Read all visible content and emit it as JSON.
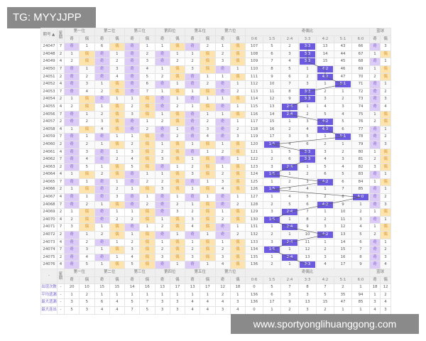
{
  "watermark_top": "TG: MYYJJPP",
  "watermark_bottom": "www.sportyonglihuanggong.com",
  "colors": {
    "odd_hit": "#dccbf7",
    "even_hit": "#fde3ad",
    "ratio_hit": "#6b59e0"
  },
  "header": {
    "issue": "期号 ▲",
    "weekday": "星期",
    "bottom_issue": "-",
    "groups": [
      "第一位",
      "第二位",
      "第三位",
      "第四位",
      "第五位",
      "第六位"
    ],
    "ratio_group": "奇偶比",
    "blue_group": "蓝球",
    "odd": "奇",
    "even": "偶",
    "ratios": [
      "0:6",
      "1:5",
      "2:4",
      "3:3",
      "4:2",
      "5:1",
      "6:0"
    ]
  },
  "rows": [
    {
      "issue": "24047",
      "wk": "7",
      "pos": [
        "奇",
        "1",
        "6",
        "偶",
        "奇",
        "1",
        "1",
        "偶",
        "奇",
        "2",
        "1",
        "偶"
      ],
      "ratio": [
        "107",
        "5",
        "2",
        "3:3",
        "13",
        "43",
        "66"
      ],
      "blue": [
        "奇",
        "3"
      ]
    },
    {
      "issue": "24048",
      "wk": "2",
      "pos": [
        "1",
        "偶",
        "奇",
        "1",
        "奇",
        "2",
        "奇",
        "1",
        "1",
        "偶",
        "2",
        "偶"
      ],
      "ratio": [
        "108",
        "6",
        "3",
        "3:3",
        "14",
        "44",
        "67"
      ],
      "blue": [
        "1",
        "偶"
      ]
    },
    {
      "issue": "24049",
      "wk": "4",
      "pos": [
        "2",
        "偶",
        "奇",
        "2",
        "奇",
        "3",
        "奇",
        "2",
        "2",
        "偶",
        "3",
        "偶"
      ],
      "ratio": [
        "109",
        "7",
        "4",
        "3:3",
        "15",
        "45",
        "68"
      ],
      "blue": [
        "奇",
        "1"
      ]
    },
    {
      "issue": "24050",
      "wk": "7",
      "pos": [
        "奇",
        "1",
        "奇",
        "3",
        "奇",
        "4",
        "1",
        "偶",
        "3",
        "偶",
        "奇",
        "1"
      ],
      "ratio": [
        "110",
        "8",
        "5",
        "1",
        "4:2",
        "46",
        "69"
      ],
      "blue": [
        "1",
        "偶"
      ]
    },
    {
      "issue": "24051",
      "wk": "2",
      "pos": [
        "奇",
        "2",
        "奇",
        "4",
        "奇",
        "5",
        "2",
        "偶",
        "奇",
        "1",
        "1",
        "偶"
      ],
      "ratio": [
        "111",
        "9",
        "6",
        "2",
        "4:2",
        "47",
        "70"
      ],
      "blue": [
        "2",
        "偶"
      ]
    },
    {
      "issue": "24052",
      "wk": "4",
      "pos": [
        "奇",
        "3",
        "1",
        "偶",
        "奇",
        "6",
        "奇",
        "1",
        "奇",
        "2",
        "奇",
        "1"
      ],
      "ratio": [
        "112",
        "10",
        "7",
        "3",
        "1",
        "5:1",
        "71"
      ],
      "blue": [
        "奇",
        "1"
      ]
    },
    {
      "issue": "24053",
      "wk": "7",
      "pos": [
        "奇",
        "4",
        "2",
        "偶",
        "奇",
        "7",
        "1",
        "偶",
        "1",
        "偶",
        "奇",
        "2"
      ],
      "ratio": [
        "113",
        "11",
        "8",
        "3:3",
        "2",
        "1",
        "72"
      ],
      "blue": [
        "奇",
        "2"
      ]
    },
    {
      "issue": "24054",
      "wk": "2",
      "pos": [
        "1",
        "偶",
        "奇",
        "1",
        "1",
        "偶",
        "奇",
        "1",
        "奇",
        "1",
        "1",
        "偶"
      ],
      "ratio": [
        "114",
        "12",
        "9",
        "3:3",
        "3",
        "2",
        "73"
      ],
      "blue": [
        "奇",
        "3"
      ]
    },
    {
      "issue": "24055",
      "wk": "4",
      "pos": [
        "2",
        "偶",
        "1",
        "偶",
        "2",
        "偶",
        "奇",
        "2",
        "1",
        "偶",
        "奇",
        "1"
      ],
      "ratio": [
        "115",
        "13",
        "2:4",
        "1",
        "4",
        "3",
        "74"
      ],
      "blue": [
        "奇",
        "4"
      ]
    },
    {
      "issue": "24056",
      "wk": "7",
      "pos": [
        "奇",
        "1",
        "2",
        "偶",
        "3",
        "偶",
        "1",
        "偶",
        "奇",
        "1",
        "1",
        "偶"
      ],
      "ratio": [
        "116",
        "14",
        "2:4",
        "2",
        "5",
        "4",
        "75"
      ],
      "blue": [
        "1",
        "偶"
      ]
    },
    {
      "issue": "24057",
      "wk": "2",
      "pos": [
        "奇",
        "2",
        "3",
        "偶",
        "奇",
        "1",
        "2",
        "偶",
        "奇",
        "2",
        "奇",
        "1"
      ],
      "ratio": [
        "117",
        "15",
        "1",
        "3",
        "4:2",
        "5",
        "76"
      ],
      "blue": [
        "2",
        "偶"
      ]
    },
    {
      "issue": "24058",
      "wk": "4",
      "pos": [
        "1",
        "偶",
        "4",
        "偶",
        "奇",
        "2",
        "奇",
        "1",
        "奇",
        "3",
        "奇",
        "2"
      ],
      "ratio": [
        "118",
        "16",
        "2",
        "4",
        "4:2",
        "6",
        "77"
      ],
      "blue": [
        "奇",
        "1"
      ]
    },
    {
      "issue": "24059",
      "wk": "7",
      "pos": [
        "奇",
        "1",
        "奇",
        "1",
        "1",
        "偶",
        "奇",
        "2",
        "奇",
        "4",
        "奇",
        "3"
      ],
      "ratio": [
        "119",
        "17",
        "3",
        "5",
        "1",
        "5:1",
        "78"
      ],
      "blue": [
        "奇",
        "2"
      ]
    },
    {
      "issue": "24060",
      "wk": "2",
      "pos": [
        "奇",
        "2",
        "1",
        "偶",
        "2",
        "偶",
        "1",
        "偶",
        "1",
        "偶",
        "1",
        "偶"
      ],
      "ratio": [
        "120",
        "1:5",
        "4",
        "6",
        "2",
        "1",
        "79"
      ],
      "blue": [
        "奇",
        "3"
      ]
    },
    {
      "issue": "24061",
      "wk": "4",
      "pos": [
        "奇",
        "3",
        "奇",
        "1",
        "3",
        "偶",
        "2",
        "偶",
        "奇",
        "1",
        "2",
        "偶"
      ],
      "ratio": [
        "121",
        "1",
        "5",
        "3:3",
        "3",
        "2",
        "80"
      ],
      "blue": [
        "1",
        "偶"
      ]
    },
    {
      "issue": "24062",
      "wk": "7",
      "pos": [
        "奇",
        "4",
        "奇",
        "2",
        "4",
        "偶",
        "3",
        "偶",
        "1",
        "偶",
        "奇",
        "1"
      ],
      "ratio": [
        "122",
        "2",
        "6",
        "3:3",
        "4",
        "3",
        "81"
      ],
      "blue": [
        "2",
        "偶"
      ]
    },
    {
      "issue": "24063",
      "wk": "2",
      "pos": [
        "奇",
        "5",
        "1",
        "偶",
        "5",
        "偶",
        "奇",
        "1",
        "2",
        "偶",
        "1",
        "偶"
      ],
      "ratio": [
        "123",
        "3",
        "2:4",
        "1",
        "5",
        "4",
        "82"
      ],
      "blue": [
        "3",
        "偶"
      ]
    },
    {
      "issue": "24064",
      "wk": "4",
      "pos": [
        "1",
        "偶",
        "2",
        "偶",
        "奇",
        "1",
        "1",
        "偶",
        "3",
        "偶",
        "2",
        "偶"
      ],
      "ratio": [
        "124",
        "1:5",
        "1",
        "2",
        "6",
        "5",
        "83"
      ],
      "blue": [
        "奇",
        "1"
      ]
    },
    {
      "issue": "24065",
      "wk": "7",
      "pos": [
        "奇",
        "1",
        "奇",
        "1",
        "奇",
        "2",
        "2",
        "偶",
        "奇",
        "1",
        "3",
        "偶"
      ],
      "ratio": [
        "125",
        "1",
        "2",
        "3",
        "4:2",
        "6",
        "84"
      ],
      "blue": [
        "1",
        "偶"
      ]
    },
    {
      "issue": "24066",
      "wk": "2",
      "pos": [
        "1",
        "偶",
        "奇",
        "2",
        "1",
        "偶",
        "3",
        "偶",
        "1",
        "偶",
        "4",
        "偶"
      ],
      "ratio": [
        "126",
        "1:5",
        "3",
        "4",
        "1",
        "7",
        "85"
      ],
      "blue": [
        "奇",
        "1"
      ]
    },
    {
      "issue": "24067",
      "wk": "4",
      "pos": [
        "奇",
        "1",
        "奇",
        "3",
        "奇",
        "1",
        "奇",
        "1",
        "奇",
        "1",
        "奇",
        "1"
      ],
      "ratio": [
        "127",
        "1",
        "4",
        "5",
        "2",
        "8",
        "6:0"
      ],
      "blue": [
        "奇",
        "2"
      ]
    },
    {
      "issue": "24068",
      "wk": "7",
      "pos": [
        "奇",
        "2",
        "1",
        "偶",
        "奇",
        "2",
        "奇",
        "2",
        "1",
        "偶",
        "奇",
        "2"
      ],
      "ratio": [
        "128",
        "2",
        "5",
        "6",
        "4:2",
        "9",
        "1"
      ],
      "blue": [
        "奇",
        "3"
      ]
    },
    {
      "issue": "24069",
      "wk": "2",
      "pos": [
        "1",
        "偶",
        "奇",
        "1",
        "1",
        "偶",
        "奇",
        "3",
        "2",
        "偶",
        "1",
        "偶"
      ],
      "ratio": [
        "129",
        "3",
        "2:4",
        "7",
        "1",
        "10",
        "2"
      ],
      "blue": [
        "1",
        "偶"
      ]
    },
    {
      "issue": "24070",
      "wk": "4",
      "pos": [
        "2",
        "偶",
        "奇",
        "2",
        "2",
        "偶",
        "1",
        "偶",
        "3",
        "偶",
        "2",
        "偶"
      ],
      "ratio": [
        "130",
        "1:5",
        "1",
        "8",
        "2",
        "11",
        "3"
      ],
      "blue": [
        "奇",
        "1"
      ]
    },
    {
      "issue": "24071",
      "wk": "7",
      "pos": [
        "3",
        "偶",
        "1",
        "偶",
        "奇",
        "1",
        "2",
        "偶",
        "4",
        "偶",
        "奇",
        "1"
      ],
      "ratio": [
        "131",
        "1",
        "2:4",
        "9",
        "3",
        "12",
        "4"
      ],
      "blue": [
        "1",
        "偶"
      ]
    },
    {
      "issue": "24072",
      "wk": "2",
      "pos": [
        "奇",
        "1",
        "2",
        "偶",
        "1",
        "偶",
        "奇",
        "1",
        "奇",
        "1",
        "奇",
        "2"
      ],
      "ratio": [
        "132",
        "2",
        "1",
        "10",
        "4:2",
        "13",
        "5"
      ],
      "blue": [
        "2",
        "偶"
      ]
    },
    {
      "issue": "24073",
      "wk": "4",
      "pos": [
        "奇",
        "2",
        "奇",
        "1",
        "2",
        "偶",
        "1",
        "偶",
        "1",
        "偶",
        "1",
        "偶"
      ],
      "ratio": [
        "133",
        "3",
        "2:4",
        "11",
        "1",
        "14",
        "6"
      ],
      "blue": [
        "奇",
        "1"
      ]
    },
    {
      "issue": "24074",
      "wk": "7",
      "pos": [
        "奇",
        "3",
        "1",
        "偶",
        "3",
        "偶",
        "2",
        "偶",
        "2",
        "偶",
        "2",
        "偶"
      ],
      "ratio": [
        "134",
        "1:5",
        "1",
        "12",
        "2",
        "15",
        "7"
      ],
      "blue": [
        "奇",
        "2"
      ]
    },
    {
      "issue": "24075",
      "wk": "2",
      "pos": [
        "奇",
        "4",
        "奇",
        "1",
        "4",
        "偶",
        "3",
        "偶",
        "3",
        "偶",
        "3",
        "偶"
      ],
      "ratio": [
        "135",
        "1",
        "2:4",
        "13",
        "3",
        "16",
        "8"
      ],
      "blue": [
        "奇",
        "3"
      ]
    },
    {
      "issue": "24076",
      "wk": "4",
      "pos": [
        "奇",
        "5",
        "1",
        "偶",
        "5",
        "偶",
        "奇",
        "1",
        "奇",
        "1",
        "4",
        "偶"
      ],
      "ratio": [
        "136",
        "2",
        "1",
        "3:3",
        "4",
        "17",
        "9"
      ],
      "blue": [
        "奇",
        "4"
      ]
    }
  ],
  "stats": [
    {
      "label": "出现次数",
      "wk": "-",
      "pos": [
        "20",
        "10",
        "15",
        "15",
        "14",
        "16",
        "13",
        "17",
        "13",
        "17",
        "12",
        "18"
      ],
      "ratio": [
        "0",
        "5",
        "7",
        "8",
        "7",
        "2",
        "1"
      ],
      "blue": [
        "18",
        "12"
      ]
    },
    {
      "label": "平均遗漏",
      "wk": "-",
      "pos": [
        "1",
        "2",
        "1",
        "1",
        "1",
        "1",
        "1",
        "1",
        "1",
        "1",
        "2",
        "1"
      ],
      "ratio": [
        "136",
        "6",
        "3",
        "3",
        "5",
        "35",
        "94"
      ],
      "blue": [
        "1",
        "2"
      ]
    },
    {
      "label": "最大遗漏",
      "wk": "-",
      "pos": [
        "3",
        "5",
        "6",
        "4",
        "5",
        "7",
        "3",
        "3",
        "4",
        "4",
        "4",
        "3"
      ],
      "ratio": [
        "136",
        "17",
        "9",
        "13",
        "15",
        "47",
        "85"
      ],
      "blue": [
        "3",
        "4"
      ]
    },
    {
      "label": "最大连出",
      "wk": "-",
      "pos": [
        "5",
        "3",
        "4",
        "4",
        "7",
        "5",
        "3",
        "3",
        "4",
        "4",
        "3",
        "4"
      ],
      "ratio": [
        "0",
        "1",
        "2",
        "3",
        "2",
        "1",
        "1"
      ],
      "blue": [
        "4",
        "3"
      ]
    }
  ]
}
